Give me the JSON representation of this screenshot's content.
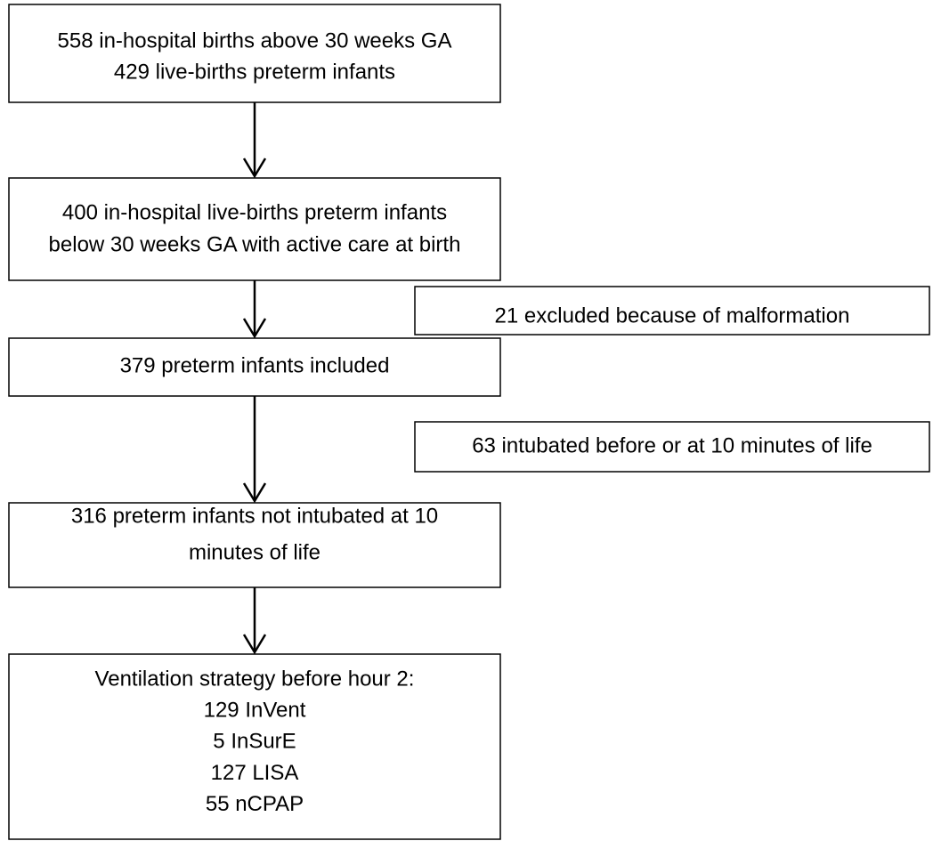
{
  "main_steps": [
    {
      "lines": [
        "558 in-hospital births above 30 weeks GA",
        "429 live-births preterm infants"
      ]
    },
    {
      "lines": [
        "400 in-hospital live-births preterm infants",
        "below 30 weeks GA with active care at birth"
      ]
    },
    {
      "lines": [
        "379 preterm infants included"
      ]
    },
    {
      "lines": [
        "316 preterm infants not intubated at 10",
        "minutes of life"
      ]
    },
    {
      "lines": [
        "Ventilation strategy before hour 2:",
        "129 InVent",
        "5 InSurE",
        "127 LISA",
        "55 nCPAP"
      ]
    }
  ],
  "exclusions": [
    {
      "lines": [
        "21 excluded because of malformation"
      ]
    },
    {
      "lines": [
        "63 intubated before or at 10 minutes of life"
      ]
    }
  ]
}
